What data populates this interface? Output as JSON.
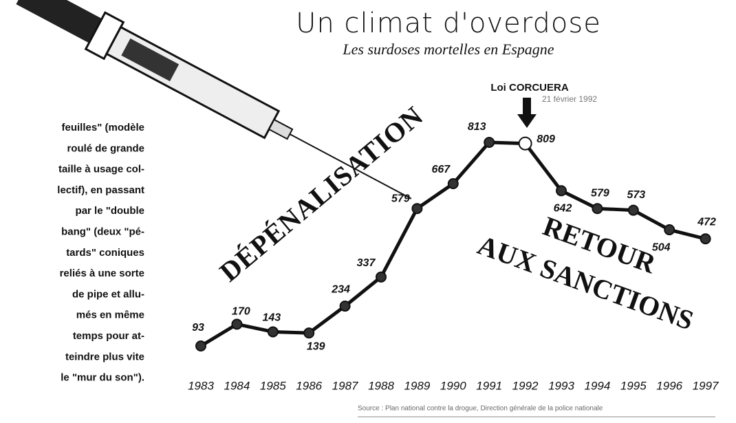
{
  "chart_data": {
    "type": "line",
    "title": "Un climat d'overdose",
    "subtitle": "Les surdoses mortelles en Espagne",
    "categories": [
      "1983",
      "1984",
      "1985",
      "1986",
      "1987",
      "1988",
      "1989",
      "1990",
      "1991",
      "1992",
      "1993",
      "1994",
      "1995",
      "1996",
      "1997"
    ],
    "values": [
      93,
      170,
      143,
      139,
      234,
      337,
      579,
      667,
      813,
      809,
      642,
      579,
      573,
      504,
      472
    ],
    "color": "#111111",
    "annotations": {
      "law": "Loi CORCUERA",
      "law_date": "21 février 1992",
      "left_phase": "DÉPÉNALISATION",
      "right_phase_1": "RETOUR",
      "right_phase_2": "AUX SANCTIONS"
    },
    "source": "Source : Plan national contre la drogue, Direction générale de la police nationale",
    "side_text": [
      "feuilles\" (modèle",
      "roulé de grande",
      "taille à usage col-",
      "lectif), en passant",
      "par le \"double",
      "bang\" (deux \"pé-",
      "tards\" coniques",
      "reliés à une sorte",
      "de pipe et allu-",
      "més en même",
      "temps pour at-",
      "teindre plus vite",
      "le \"mur du son\")."
    ]
  }
}
